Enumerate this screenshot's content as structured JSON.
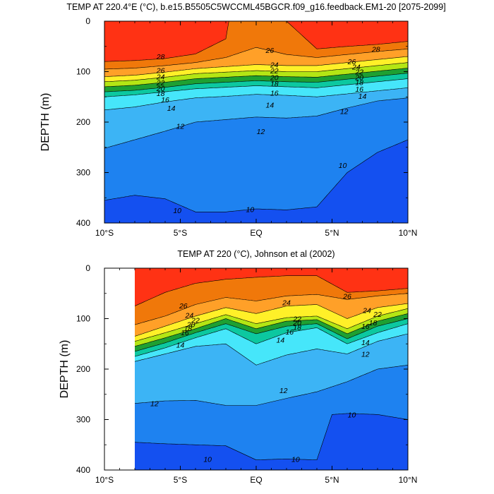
{
  "chart_data": [
    {
      "type": "contour",
      "title": "TEMP AT 220.4°E (°C), b.e15.B5505C5WCCML45BGCR.f09_g16.feedback.EM1-20 [2075-2099]",
      "xlabel": "",
      "ylabel": "DEPTH (m)",
      "xlim": [
        -10,
        10
      ],
      "ylim": [
        400,
        0
      ],
      "x_ticks": [
        {
          "value": -10,
          "label": "10°S"
        },
        {
          "value": -5,
          "label": "5°S"
        },
        {
          "value": 0,
          "label": "EQ"
        },
        {
          "value": 5,
          "label": "5°N"
        },
        {
          "value": 10,
          "label": "10°N"
        }
      ],
      "y_ticks": [
        {
          "value": 0,
          "label": "0"
        },
        {
          "value": 100,
          "label": "100"
        },
        {
          "value": 200,
          "label": "200"
        },
        {
          "value": 300,
          "label": "300"
        },
        {
          "value": 400,
          "label": "400"
        }
      ],
      "data_start_lat": -10,
      "levels": [
        8,
        10,
        12,
        14,
        16,
        18,
        20,
        22,
        24,
        26,
        28,
        30
      ],
      "level_colors": [
        "#0a1ec8",
        "#1450f0",
        "#1e82f0",
        "#3cb4f5",
        "#46e6fa",
        "#0cc8a0",
        "#1ea032",
        "#b4e614",
        "#fff028",
        "#ffa028",
        "#f0780a",
        "#ff3214",
        "#d20a0a"
      ],
      "isotherms": [
        {
          "level": 10,
          "lat": [
            -10,
            -8,
            -6,
            -4,
            -2,
            0,
            2,
            4,
            6,
            8,
            10
          ],
          "depth": [
            355,
            345,
            352,
            378,
            378,
            372,
            374,
            368,
            300,
            260,
            235
          ]
        },
        {
          "level": 12,
          "lat": [
            -10,
            -8,
            -6,
            -4,
            -2,
            0,
            2,
            4,
            6,
            8,
            10
          ],
          "depth": [
            252,
            235,
            218,
            200,
            195,
            190,
            192,
            188,
            172,
            158,
            152
          ]
        },
        {
          "level": 14,
          "lat": [
            -10,
            -8,
            -6,
            -4,
            -2,
            0,
            2,
            4,
            6,
            8,
            10
          ],
          "depth": [
            176,
            170,
            160,
            152,
            149,
            145,
            147,
            150,
            144,
            138,
            132
          ]
        },
        {
          "level": 16,
          "lat": [
            -10,
            -8,
            -6,
            -4,
            -2,
            0,
            2,
            4,
            6,
            8,
            10
          ],
          "depth": [
            150,
            146,
            140,
            134,
            131,
            128,
            130,
            132,
            126,
            120,
            114
          ]
        },
        {
          "level": 18,
          "lat": [
            -10,
            -8,
            -6,
            -4,
            -2,
            0,
            2,
            4,
            6,
            8,
            10
          ],
          "depth": [
            140,
            137,
            131,
            124,
            121,
            118,
            120,
            121,
            115,
            109,
            103
          ]
        },
        {
          "level": 20,
          "lat": [
            -10,
            -8,
            -6,
            -4,
            -2,
            0,
            2,
            4,
            6,
            8,
            10
          ],
          "depth": [
            130,
            127,
            121,
            114,
            111,
            108,
            110,
            111,
            105,
            99,
            93
          ]
        },
        {
          "level": 22,
          "lat": [
            -10,
            -8,
            -6,
            -4,
            -2,
            0,
            2,
            4,
            6,
            8,
            10
          ],
          "depth": [
            120,
            117,
            111,
            104,
            101,
            98,
            100,
            100,
            94,
            88,
            82
          ]
        },
        {
          "level": 24,
          "lat": [
            -10,
            -8,
            -6,
            -4,
            -2,
            0,
            2,
            4,
            6,
            8,
            10
          ],
          "depth": [
            110,
            107,
            101,
            94,
            90,
            86,
            88,
            88,
            82,
            76,
            70
          ]
        },
        {
          "level": 26,
          "lat": [
            -10,
            -8,
            -6,
            -4,
            -2,
            0,
            2,
            4,
            6,
            8,
            10
          ],
          "depth": [
            95,
            93,
            88,
            82,
            72,
            52,
            66,
            72,
            66,
            60,
            55
          ]
        },
        {
          "level": 28,
          "lat": [
            -10,
            -8,
            -6,
            -4,
            -2,
            -1.8,
            2,
            4,
            6,
            8,
            10
          ],
          "depth": [
            80,
            78,
            74,
            65,
            35,
            0,
            0,
            55,
            50,
            46,
            40
          ]
        }
      ],
      "contour_labels": [
        {
          "text": "28",
          "lat": -6.3,
          "depth": 70
        },
        {
          "text": "26",
          "lat": -6.3,
          "depth": 97
        },
        {
          "text": "24",
          "lat": -6.3,
          "depth": 110
        },
        {
          "text": "22",
          "lat": -6.3,
          "depth": 122
        },
        {
          "text": "20",
          "lat": -6.3,
          "depth": 133
        },
        {
          "text": "18",
          "lat": -6.3,
          "depth": 143
        },
        {
          "text": "16",
          "lat": -6.0,
          "depth": 155
        },
        {
          "text": "14",
          "lat": -5.6,
          "depth": 172
        },
        {
          "text": "12",
          "lat": -5.0,
          "depth": 208
        },
        {
          "text": "10",
          "lat": -5.2,
          "depth": 375
        },
        {
          "text": "26",
          "lat": 0.9,
          "depth": 57
        },
        {
          "text": "24",
          "lat": 1.2,
          "depth": 86
        },
        {
          "text": "22",
          "lat": 1.2,
          "depth": 98
        },
        {
          "text": "20",
          "lat": 1.2,
          "depth": 111
        },
        {
          "text": "18",
          "lat": 1.2,
          "depth": 124
        },
        {
          "text": "16",
          "lat": 1.2,
          "depth": 142
        },
        {
          "text": "14",
          "lat": 0.9,
          "depth": 166
        },
        {
          "text": "12",
          "lat": 0.3,
          "depth": 218
        },
        {
          "text": "10",
          "lat": -0.4,
          "depth": 373
        },
        {
          "text": "28",
          "lat": 7.9,
          "depth": 55
        },
        {
          "text": "26",
          "lat": 6.3,
          "depth": 80
        },
        {
          "text": "24",
          "lat": 6.6,
          "depth": 90
        },
        {
          "text": "22",
          "lat": 6.8,
          "depth": 100
        },
        {
          "text": "20",
          "lat": 6.8,
          "depth": 111
        },
        {
          "text": "18",
          "lat": 6.8,
          "depth": 121
        },
        {
          "text": "16",
          "lat": 6.8,
          "depth": 134
        },
        {
          "text": "14",
          "lat": 7.0,
          "depth": 148
        },
        {
          "text": "12",
          "lat": 5.8,
          "depth": 178
        },
        {
          "text": "10",
          "lat": 5.7,
          "depth": 285
        }
      ]
    },
    {
      "type": "contour",
      "title": "TEMP AT 220 (°C), Johnson et al (2002)",
      "xlabel": "",
      "ylabel": "DEPTH (m)",
      "xlim": [
        -10,
        10
      ],
      "ylim": [
        400,
        0
      ],
      "x_ticks": [
        {
          "value": -10,
          "label": "10°S"
        },
        {
          "value": -5,
          "label": "5°S"
        },
        {
          "value": 0,
          "label": "EQ"
        },
        {
          "value": 5,
          "label": "5°N"
        },
        {
          "value": 10,
          "label": "10°N"
        }
      ],
      "y_ticks": [
        {
          "value": 0,
          "label": "0"
        },
        {
          "value": 100,
          "label": "100"
        },
        {
          "value": 200,
          "label": "200"
        },
        {
          "value": 300,
          "label": "300"
        },
        {
          "value": 400,
          "label": "400"
        }
      ],
      "data_start_lat": -8,
      "levels": [
        8,
        10,
        12,
        14,
        16,
        18,
        20,
        22,
        24,
        26,
        28,
        30
      ],
      "level_colors": [
        "#0a1ec8",
        "#1450f0",
        "#1e82f0",
        "#3cb4f5",
        "#46e6fa",
        "#0cc8a0",
        "#1ea032",
        "#b4e614",
        "#fff028",
        "#ffa028",
        "#f0780a",
        "#ff3214",
        "#d20a0a"
      ],
      "isotherms": [
        {
          "level": 10,
          "lat": [
            -8,
            -6,
            -4,
            -2,
            0,
            2,
            4,
            5,
            6,
            8,
            10
          ],
          "depth": [
            345,
            348,
            350,
            352,
            380,
            378,
            380,
            290,
            288,
            290,
            300
          ]
        },
        {
          "level": 12,
          "lat": [
            -8,
            -6,
            -4,
            -2,
            0,
            2,
            4,
            6,
            8,
            10
          ],
          "depth": [
            268,
            263,
            262,
            272,
            272,
            258,
            245,
            225,
            200,
            192
          ]
        },
        {
          "level": 14,
          "lat": [
            -8,
            -6,
            -4,
            -2,
            0,
            2,
            4,
            6,
            8,
            10
          ],
          "depth": [
            185,
            170,
            155,
            150,
            192,
            172,
            160,
            170,
            145,
            130
          ]
        },
        {
          "level": 16,
          "lat": [
            -8,
            -6,
            -4,
            -2,
            0,
            2,
            4,
            6,
            8,
            10
          ],
          "depth": [
            175,
            158,
            138,
            120,
            150,
            128,
            118,
            150,
            128,
            110
          ]
        },
        {
          "level": 18,
          "lat": [
            -8,
            -6,
            -4,
            -2,
            0,
            2,
            4,
            6,
            8,
            10
          ],
          "depth": [
            165,
            148,
            128,
            110,
            130,
            115,
            110,
            140,
            115,
            100
          ]
        },
        {
          "level": 20,
          "lat": [
            -8,
            -6,
            -4,
            -2,
            0,
            2,
            4,
            6,
            8,
            10
          ],
          "depth": [
            155,
            138,
            120,
            100,
            120,
            105,
            102,
            130,
            105,
            90
          ]
        },
        {
          "level": 22,
          "lat": [
            -8,
            -6,
            -4,
            -2,
            0,
            2,
            4,
            6,
            8,
            10
          ],
          "depth": [
            145,
            128,
            110,
            92,
            110,
            98,
            95,
            120,
            95,
            80
          ]
        },
        {
          "level": 24,
          "lat": [
            -8,
            -6,
            -4,
            -2,
            0,
            2,
            4,
            6,
            8,
            10
          ],
          "depth": [
            135,
            115,
            95,
            78,
            90,
            75,
            72,
            100,
            78,
            70
          ]
        },
        {
          "level": 26,
          "lat": [
            -8,
            -6,
            -4,
            -2,
            0,
            2,
            4,
            6,
            8,
            10
          ],
          "depth": [
            112,
            95,
            72,
            58,
            65,
            55,
            52,
            62,
            55,
            50
          ]
        },
        {
          "level": 28,
          "lat": [
            -8,
            -6,
            -4,
            -2,
            0,
            2,
            4,
            6,
            8,
            10
          ],
          "depth": [
            75,
            48,
            30,
            22,
            18,
            15,
            15,
            48,
            45,
            40
          ]
        }
      ],
      "contour_labels": [
        {
          "text": "26",
          "lat": -4.8,
          "depth": 74
        },
        {
          "text": "24",
          "lat": -4.4,
          "depth": 93
        },
        {
          "text": "22",
          "lat": -4.0,
          "depth": 103
        },
        {
          "text": "20",
          "lat": -4.3,
          "depth": 111
        },
        {
          "text": "18",
          "lat": -4.5,
          "depth": 119
        },
        {
          "text": "16",
          "lat": -4.7,
          "depth": 127
        },
        {
          "text": "14",
          "lat": -5.0,
          "depth": 152
        },
        {
          "text": "12",
          "lat": -6.7,
          "depth": 268
        },
        {
          "text": "10",
          "lat": -3.2,
          "depth": 378
        },
        {
          "text": "24",
          "lat": 2.0,
          "depth": 68
        },
        {
          "text": "22",
          "lat": 2.7,
          "depth": 100
        },
        {
          "text": "20",
          "lat": 2.7,
          "depth": 108
        },
        {
          "text": "18",
          "lat": 2.7,
          "depth": 117
        },
        {
          "text": "16",
          "lat": 2.2,
          "depth": 126
        },
        {
          "text": "14",
          "lat": 1.6,
          "depth": 142
        },
        {
          "text": "12",
          "lat": 1.8,
          "depth": 242
        },
        {
          "text": "10",
          "lat": 2.6,
          "depth": 378
        },
        {
          "text": "26",
          "lat": 6.0,
          "depth": 55
        },
        {
          "text": "24",
          "lat": 7.3,
          "depth": 83
        },
        {
          "text": "22",
          "lat": 8.0,
          "depth": 91
        },
        {
          "text": "18",
          "lat": 7.7,
          "depth": 108
        },
        {
          "text": "16",
          "lat": 7.2,
          "depth": 115
        },
        {
          "text": "14",
          "lat": 7.2,
          "depth": 147
        },
        {
          "text": "12",
          "lat": 7.2,
          "depth": 170
        },
        {
          "text": "10",
          "lat": 6.3,
          "depth": 290
        }
      ]
    }
  ]
}
